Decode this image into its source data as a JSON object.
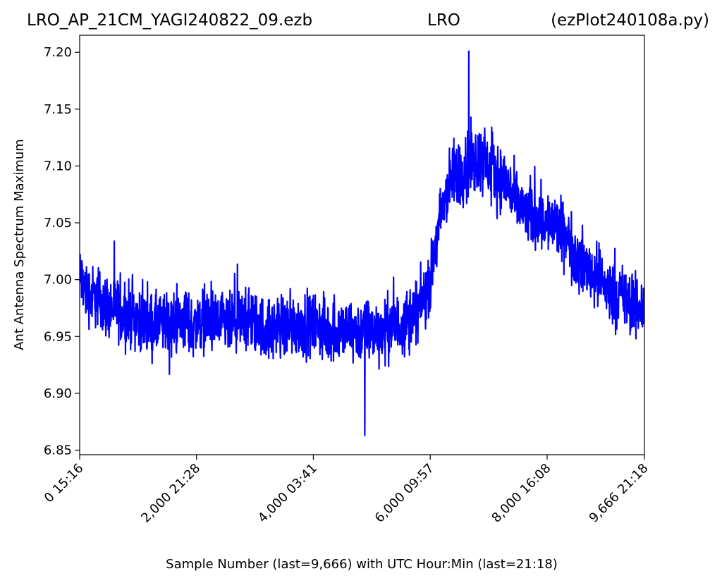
{
  "chart_data": {
    "type": "line",
    "title_left": "LRO_AP_21CM_YAGI240822_09.ezb",
    "title_center": "LRO",
    "title_right": "(ezPlot240108a.py)",
    "xlabel": "Sample Number (last=9,666) with UTC Hour:Min (last=21:18)",
    "ylabel": "Ant Antenna Spectrum Maximum",
    "xlim": [
      0,
      9666
    ],
    "ylim": [
      6.846,
      7.215
    ],
    "x_ticks": [
      {
        "value": 0,
        "label": "0  15:16"
      },
      {
        "value": 2000,
        "label": "2,000  21:28"
      },
      {
        "value": 4000,
        "label": "4,000  03:41"
      },
      {
        "value": 6000,
        "label": "6,000  09:57"
      },
      {
        "value": 8000,
        "label": "8,000  16:08"
      },
      {
        "value": 9666,
        "label": "9,666  21:18"
      }
    ],
    "y_ticks": [
      {
        "value": 6.85,
        "label": "6.85"
      },
      {
        "value": 6.9,
        "label": "6.90"
      },
      {
        "value": 6.95,
        "label": "6.95"
      },
      {
        "value": 7.0,
        "label": "7.00"
      },
      {
        "value": 7.05,
        "label": "7.05"
      },
      {
        "value": 7.1,
        "label": "7.10"
      },
      {
        "value": 7.15,
        "label": "7.15"
      },
      {
        "value": 7.2,
        "label": "7.20"
      }
    ],
    "grid": false,
    "series": [
      {
        "color": "#0000ff",
        "sample_step": 100,
        "sample_start": 0,
        "center": [
          7.005,
          6.99,
          6.985,
          6.985,
          6.98,
          6.975,
          6.975,
          6.97,
          6.97,
          6.97,
          6.965,
          6.965,
          6.96,
          6.96,
          6.96,
          6.96,
          6.96,
          6.965,
          6.965,
          6.96,
          6.96,
          6.965,
          6.965,
          6.96,
          6.96,
          6.96,
          6.96,
          6.96,
          6.965,
          6.965,
          6.96,
          6.96,
          6.955,
          6.955,
          6.96,
          6.96,
          6.96,
          6.96,
          6.96,
          6.96,
          6.96,
          6.96,
          6.955,
          6.955,
          6.955,
          6.955,
          6.955,
          6.955,
          6.955,
          6.955,
          6.955,
          6.955,
          6.955,
          6.96,
          6.96,
          6.96,
          6.965,
          6.97,
          6.975,
          6.985,
          7.0,
          7.03,
          7.06,
          7.08,
          7.09,
          7.095,
          7.1,
          7.105,
          7.105,
          7.105,
          7.1,
          7.095,
          7.09,
          7.085,
          7.075,
          7.065,
          7.06,
          7.055,
          7.055,
          7.055,
          7.05,
          7.05,
          7.045,
          7.04,
          7.03,
          7.02,
          7.015,
          7.01,
          7.005,
          7.0,
          6.995,
          6.99,
          6.985,
          6.985,
          6.98,
          6.975,
          6.975
        ],
        "spread": [
          0.035,
          0.04,
          0.04,
          0.04,
          0.04,
          0.04,
          0.04,
          0.04,
          0.04,
          0.04,
          0.04,
          0.04,
          0.04,
          0.04,
          0.04,
          0.04,
          0.04,
          0.04,
          0.04,
          0.04,
          0.04,
          0.04,
          0.04,
          0.04,
          0.04,
          0.04,
          0.04,
          0.04,
          0.04,
          0.04,
          0.04,
          0.04,
          0.04,
          0.04,
          0.04,
          0.04,
          0.04,
          0.04,
          0.04,
          0.04,
          0.04,
          0.04,
          0.04,
          0.04,
          0.04,
          0.04,
          0.04,
          0.04,
          0.04,
          0.04,
          0.04,
          0.04,
          0.04,
          0.04,
          0.04,
          0.04,
          0.04,
          0.04,
          0.04,
          0.04,
          0.04,
          0.04,
          0.04,
          0.045,
          0.045,
          0.045,
          0.045,
          0.045,
          0.045,
          0.045,
          0.045,
          0.045,
          0.04,
          0.04,
          0.04,
          0.04,
          0.04,
          0.04,
          0.04,
          0.04,
          0.04,
          0.04,
          0.04,
          0.04,
          0.04,
          0.04,
          0.04,
          0.04,
          0.04,
          0.04,
          0.04,
          0.04,
          0.04,
          0.04,
          0.04,
          0.04,
          0.04
        ],
        "min_point": {
          "x": 4880,
          "y": 6.863
        },
        "max_point": {
          "x": 6660,
          "y": 7.201
        }
      }
    ]
  }
}
